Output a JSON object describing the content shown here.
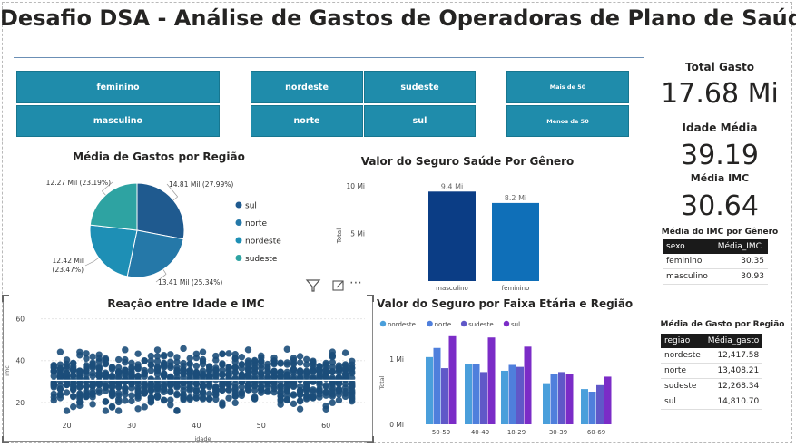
{
  "title": "Desafio DSA - Análise de Gastos de Operadoras de Plano de Saúde",
  "slicers": {
    "gender": [
      "feminino",
      "masculino"
    ],
    "region": [
      "nordeste",
      "sudeste",
      "norte",
      "sul"
    ],
    "age": [
      "Mais de 50",
      "Menos de 50"
    ]
  },
  "kpis": {
    "total_label": "Total Gasto",
    "total_value": "17.68 Mi",
    "age_label": "Idade Média",
    "age_value": "39.19",
    "imc_label": "Média IMC",
    "imc_value": "30.64"
  },
  "imc_table": {
    "title": "Média do IMC por Gênero",
    "headers": [
      "sexo",
      "Média_IMC"
    ],
    "rows": [
      [
        "feminino",
        "30.35"
      ],
      [
        "masculino",
        "30.93"
      ]
    ]
  },
  "gasto_table": {
    "title": "Média de Gasto por Região",
    "headers": [
      "regiao",
      "Média_gasto"
    ],
    "rows": [
      [
        "nordeste",
        "12,417.58"
      ],
      [
        "norte",
        "13,408.21"
      ],
      [
        "sudeste",
        "12,268.34"
      ],
      [
        "sul",
        "14,810.70"
      ]
    ]
  },
  "colors": {
    "slicer": "#1f8cab",
    "sul": "#1f5a8f",
    "norte": "#2578a8",
    "nordeste": "#1e8fb5",
    "sudeste": "#2ea3a2",
    "masculino": "#0b3d85",
    "feminino": "#0f6fb8",
    "bar_nordeste": "#4a9fdb",
    "bar_norte": "#4f7fdc",
    "bar_sudeste": "#6058c8",
    "bar_sul": "#7b2cc7",
    "scatter": "#1c4e7a"
  },
  "icons": [
    "filter-icon",
    "focus-mode-icon",
    "more-options-icon"
  ],
  "chart_data": [
    {
      "type": "pie",
      "title": "Média de Gastos por Região",
      "slices": [
        {
          "name": "sul",
          "value": 14.81,
          "label": "14.81 Mil (27.99%)"
        },
        {
          "name": "norte",
          "value": 13.41,
          "label": "13.41 Mil (25.34%)"
        },
        {
          "name": "nordeste",
          "value": 12.42,
          "label": "12.42 Mil (23.47%)"
        },
        {
          "name": "sudeste",
          "value": 12.27,
          "label": "12.27 Mil (23.19%)"
        }
      ],
      "legend": [
        "sul",
        "norte",
        "nordeste",
        "sudeste"
      ],
      "legend_position": "right"
    },
    {
      "type": "bar",
      "title": "Valor do Seguro Saúde Por Gênero",
      "categories": [
        "masculino",
        "feminino"
      ],
      "values": [
        9.4,
        8.2
      ],
      "data_labels": [
        "9.4 Mi",
        "8.2 Mi"
      ],
      "ylabel": "Total",
      "yticks": [
        "5 Mi",
        "10 Mi"
      ],
      "ylim": [
        0,
        10
      ]
    },
    {
      "type": "scatter",
      "title": "Reação entre Idade e IMC",
      "xlabel": "idade",
      "ylabel": "imc",
      "xticks": [
        20,
        30,
        40,
        50,
        60
      ],
      "yticks": [
        20,
        40,
        60
      ],
      "xlim": [
        16,
        66
      ],
      "ylim": [
        13,
        62
      ],
      "x_range": [
        18,
        64
      ],
      "imc_mean": 30.6,
      "imc_spread": 6
    },
    {
      "type": "bar",
      "title": "Valor do Seguro por Faixa Etária e Região",
      "categories": [
        "50-59",
        "40-49",
        "18-29",
        "30-39",
        "60-69"
      ],
      "series": [
        {
          "name": "nordeste",
          "values": [
            1.03,
            0.92,
            0.82,
            0.63,
            0.54
          ]
        },
        {
          "name": "norte",
          "values": [
            1.17,
            0.92,
            0.91,
            0.77,
            0.5
          ]
        },
        {
          "name": "sudeste",
          "values": [
            0.86,
            0.8,
            0.88,
            0.8,
            0.6
          ]
        },
        {
          "name": "sul",
          "values": [
            1.35,
            1.33,
            1.19,
            0.77,
            0.73
          ]
        }
      ],
      "ylabel": "Total",
      "yticks": [
        "0 Mi",
        "1 Mi"
      ],
      "ylim": [
        0,
        1.5
      ],
      "legend_position": "top-left"
    }
  ]
}
